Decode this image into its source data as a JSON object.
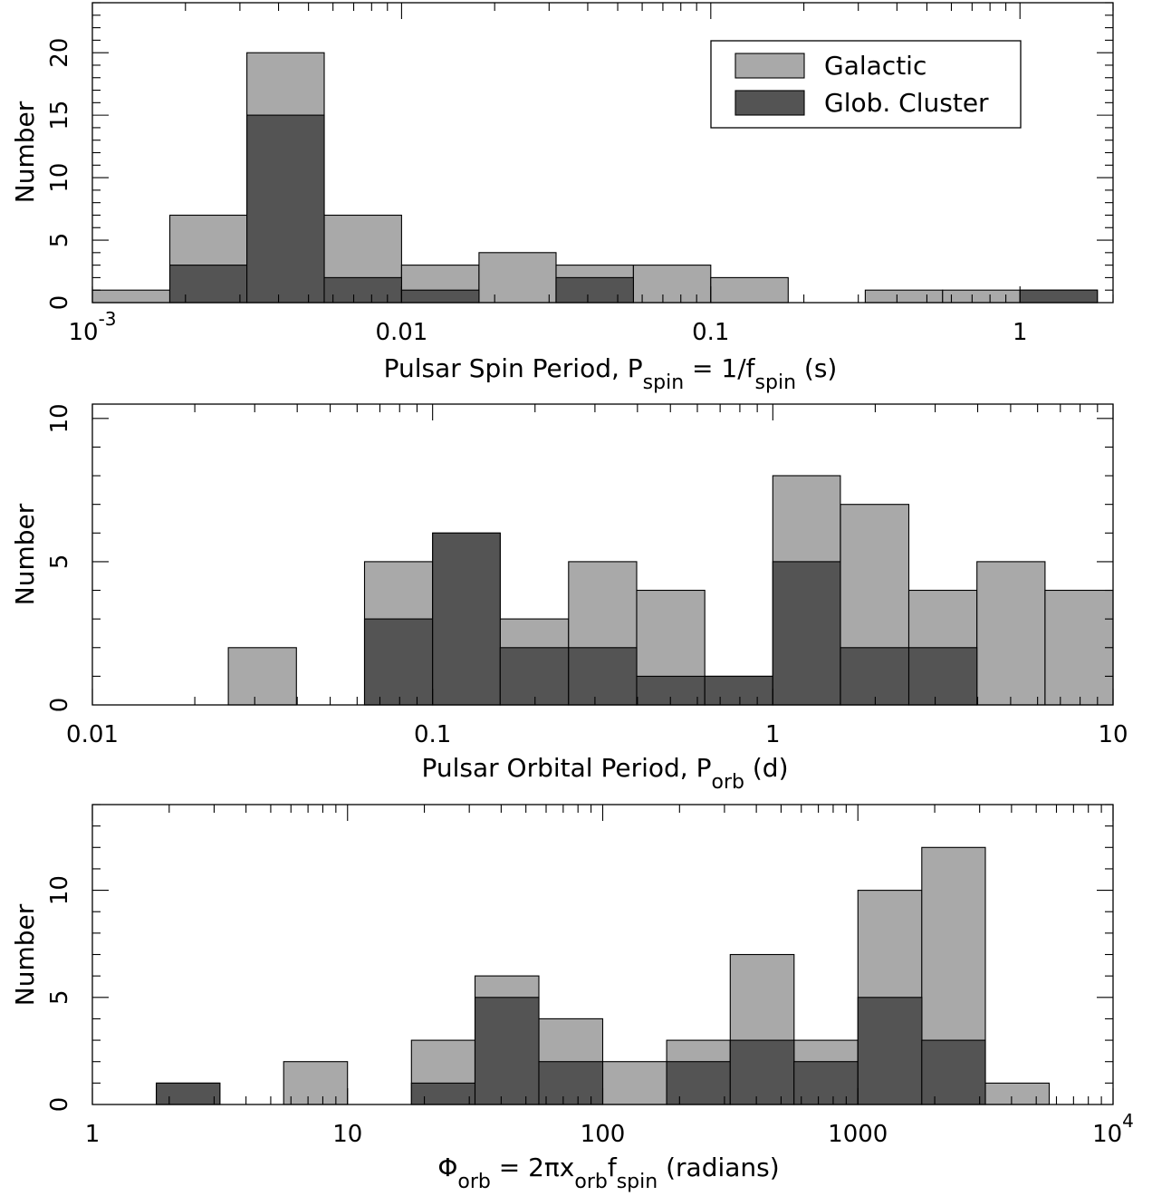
{
  "colors": {
    "galactic": "#a9a9a9",
    "glob_cluster": "#545454",
    "axes": "#000000"
  },
  "legend": {
    "galactic": "Galactic",
    "glob_cluster": "Glob. Cluster"
  },
  "chart_data": [
    {
      "type": "bar",
      "subtype": "histogram",
      "xscale": "log",
      "xlim": [
        0.001,
        2
      ],
      "ylim": [
        0,
        24
      ],
      "xticks": [
        0.001,
        0.01,
        0.1,
        1
      ],
      "yticks": [
        0,
        5,
        10,
        15,
        20
      ],
      "ylabel": "Number",
      "xlabel_parts": [
        "Pulsar Spin Period, P",
        "spin",
        " = 1/f",
        "spin",
        " (s)"
      ],
      "legend_placement": "top-right",
      "bin_edges": [
        0.001,
        0.00178,
        0.00316,
        0.00562,
        0.01,
        0.0178,
        0.0316,
        0.0562,
        0.1,
        0.178,
        0.316,
        0.562,
        1.0,
        1.78
      ],
      "series": [
        {
          "name": "Galactic",
          "values": [
            1,
            7,
            20,
            7,
            3,
            4,
            3,
            3,
            2,
            0,
            1,
            1,
            1
          ]
        },
        {
          "name": "Glob. Cluster",
          "values": [
            0,
            3,
            15,
            2,
            1,
            0,
            2,
            0,
            0,
            0,
            0,
            0,
            1
          ]
        }
      ]
    },
    {
      "type": "bar",
      "subtype": "histogram",
      "xscale": "log",
      "xlim": [
        0.01,
        10
      ],
      "ylim": [
        0,
        10.5
      ],
      "xticks": [
        0.01,
        0.1,
        1,
        10
      ],
      "yticks": [
        0,
        5,
        10
      ],
      "ylabel": "Number",
      "xlabel_parts": [
        "Pulsar Orbital Period, P",
        "orb",
        " (d)"
      ],
      "bin_edges": [
        0.01,
        0.0158,
        0.0251,
        0.0398,
        0.0631,
        0.1,
        0.158,
        0.251,
        0.398,
        0.631,
        1.0,
        1.58,
        2.51,
        3.98,
        6.31,
        10.0
      ],
      "series": [
        {
          "name": "Galactic",
          "values": [
            0,
            0,
            2,
            0,
            5,
            6,
            3,
            5,
            4,
            1,
            8,
            7,
            4,
            5,
            4
          ]
        },
        {
          "name": "Glob. Cluster",
          "values": [
            0,
            0,
            0,
            0,
            3,
            6,
            2,
            2,
            1,
            1,
            5,
            2,
            2,
            0,
            0
          ]
        }
      ]
    },
    {
      "type": "bar",
      "subtype": "histogram",
      "xscale": "log",
      "xlim": [
        1,
        10000
      ],
      "ylim": [
        0,
        14
      ],
      "xticks": [
        1,
        10,
        100,
        1000,
        10000
      ],
      "yticks": [
        0,
        5,
        10
      ],
      "ylabel": "Number",
      "xlabel_parts": [
        "Φ",
        "orb",
        " = 2πx",
        "orb",
        "f",
        "spin",
        " (radians)"
      ],
      "bin_edges": [
        1.0,
        1.78,
        3.16,
        5.62,
        10.0,
        17.8,
        31.6,
        56.2,
        100,
        178,
        316,
        562,
        1000,
        1780,
        3160,
        5620,
        10000
      ],
      "series": [
        {
          "name": "Galactic",
          "values": [
            0,
            1,
            0,
            2,
            0,
            3,
            6,
            4,
            2,
            3,
            7,
            3,
            10,
            12,
            1,
            0
          ]
        },
        {
          "name": "Glob. Cluster",
          "values": [
            0,
            1,
            0,
            0,
            0,
            1,
            5,
            2,
            0,
            2,
            3,
            2,
            5,
            3,
            0,
            0
          ]
        }
      ]
    }
  ]
}
